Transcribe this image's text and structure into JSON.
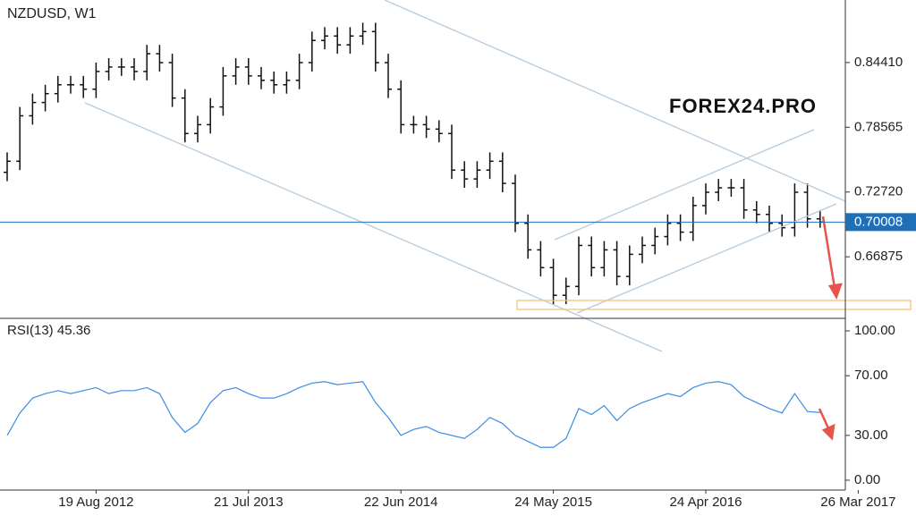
{
  "chart_data": [
    {
      "type": "ohlc",
      "title": "NZDUSD, W1",
      "watermark": "FOREX24.PRO",
      "ylim": [
        0.614,
        0.9005
      ],
      "yticks": [
        {
          "value": 0.8441,
          "label": "0.84410"
        },
        0.78565,
        {
          "value": 0.7272,
          "label": "0.72720"
        },
        0.66875
      ],
      "current_price": 0.70008,
      "current_color": "#1f6fb8",
      "color": "#111111",
      "series": [
        {
          "name": "NZDUSD",
          "open": [
            0.745,
            0.755,
            0.796,
            0.808,
            0.816,
            0.824,
            0.824,
            0.82,
            0.836,
            0.84,
            0.84,
            0.836,
            0.852,
            0.844,
            0.812,
            0.78,
            0.788,
            0.804,
            0.832,
            0.84,
            0.832,
            0.828,
            0.824,
            0.828,
            0.844,
            0.864,
            0.868,
            0.86,
            0.868,
            0.872,
            0.844,
            0.82,
            0.788,
            0.788,
            0.784,
            0.78,
            0.747,
            0.739,
            0.747,
            0.755,
            0.735,
            0.699,
            0.675,
            0.659,
            0.634,
            0.642,
            0.679,
            0.659,
            0.675,
            0.651,
            0.671,
            0.679,
            0.687,
            0.699,
            0.691,
            0.715,
            0.727,
            0.731,
            0.731,
            0.711,
            0.707,
            0.699,
            0.695,
            0.727,
            0.703,
            null,
            null,
            null
          ],
          "high": [
            0.763,
            0.804,
            0.816,
            0.824,
            0.832,
            0.832,
            0.832,
            0.844,
            0.848,
            0.848,
            0.848,
            0.86,
            0.86,
            0.852,
            0.82,
            0.796,
            0.812,
            0.84,
            0.848,
            0.848,
            0.84,
            0.836,
            0.836,
            0.852,
            0.872,
            0.876,
            0.876,
            0.876,
            0.88,
            0.88,
            0.852,
            0.828,
            0.796,
            0.796,
            0.792,
            0.788,
            0.755,
            0.755,
            0.763,
            0.763,
            0.743,
            0.707,
            0.683,
            0.667,
            0.65,
            0.687,
            0.687,
            0.683,
            0.683,
            0.679,
            0.687,
            0.695,
            0.707,
            0.707,
            0.723,
            0.735,
            0.739,
            0.739,
            0.739,
            0.719,
            0.715,
            0.707,
            0.735,
            0.735,
            0.711,
            null,
            null,
            null
          ],
          "low": [
            0.737,
            0.747,
            0.788,
            0.8,
            0.808,
            0.816,
            0.812,
            0.812,
            0.828,
            0.832,
            0.828,
            0.828,
            0.836,
            0.804,
            0.772,
            0.772,
            0.78,
            0.796,
            0.824,
            0.824,
            0.82,
            0.816,
            0.816,
            0.82,
            0.836,
            0.856,
            0.852,
            0.852,
            0.86,
            0.836,
            0.812,
            0.78,
            0.78,
            0.776,
            0.772,
            0.739,
            0.731,
            0.731,
            0.739,
            0.727,
            0.691,
            0.667,
            0.651,
            0.626,
            0.626,
            0.634,
            0.651,
            0.651,
            0.643,
            0.643,
            0.663,
            0.671,
            0.679,
            0.683,
            0.683,
            0.707,
            0.719,
            0.723,
            0.703,
            0.699,
            0.691,
            0.687,
            0.687,
            0.695,
            0.695,
            null,
            null,
            null
          ],
          "close": [
            0.755,
            0.796,
            0.808,
            0.816,
            0.824,
            0.824,
            0.82,
            0.836,
            0.84,
            0.84,
            0.836,
            0.852,
            0.844,
            0.812,
            0.78,
            0.788,
            0.804,
            0.832,
            0.84,
            0.832,
            0.828,
            0.824,
            0.828,
            0.844,
            0.864,
            0.868,
            0.86,
            0.868,
            0.872,
            0.844,
            0.82,
            0.788,
            0.788,
            0.784,
            0.78,
            0.747,
            0.739,
            0.747,
            0.755,
            0.735,
            0.699,
            0.675,
            0.659,
            0.634,
            0.642,
            0.679,
            0.659,
            0.675,
            0.651,
            0.671,
            0.679,
            0.687,
            0.699,
            0.691,
            0.715,
            0.727,
            0.731,
            0.731,
            0.711,
            0.707,
            0.699,
            0.695,
            0.727,
            0.703,
            0.70008,
            null,
            null,
            null
          ]
        }
      ]
    },
    {
      "type": "line",
      "indicator": "RSI(13)",
      "categories": [
        null,
        null,
        null,
        null,
        null,
        null,
        null,
        "19 Aug 2012",
        null,
        null,
        null,
        null,
        null,
        null,
        null,
        null,
        null,
        null,
        null,
        "21 Jul 2013",
        null,
        null,
        null,
        null,
        null,
        null,
        null,
        null,
        null,
        null,
        null,
        "22 Jun 2014",
        null,
        null,
        null,
        null,
        null,
        null,
        null,
        null,
        null,
        null,
        null,
        "24 May 2015",
        null,
        null,
        null,
        null,
        null,
        null,
        null,
        null,
        null,
        null,
        null,
        "24 Apr 2016",
        null,
        null,
        null,
        null,
        null,
        null,
        null,
        null,
        null,
        null,
        null,
        "26 Mar 2017"
      ],
      "ylim": [
        -6.6,
        107.8
      ],
      "yticks": [
        {
          "value": 100,
          "label": "100.00"
        },
        {
          "value": 70,
          "label": "70.00"
        },
        {
          "value": 30,
          "label": "30.00"
        },
        {
          "value": 0,
          "label": "0.00"
        }
      ],
      "series": [
        {
          "name": "RSI",
          "color": "#3a8ee6",
          "values": [
            30,
            45,
            55,
            58,
            60,
            58,
            60,
            62,
            58,
            60,
            60,
            62,
            58,
            42,
            32,
            38,
            52,
            60,
            62,
            58,
            55,
            55,
            58,
            62,
            65,
            66,
            64,
            65,
            66,
            52,
            42,
            30,
            34,
            36,
            32,
            30,
            28,
            34,
            42,
            38,
            30,
            26,
            22,
            22,
            28,
            48,
            44,
            50,
            40,
            48,
            52,
            55,
            58,
            56,
            62,
            65,
            66,
            64,
            56,
            52,
            48,
            45,
            58,
            46,
            45.36,
            null,
            null,
            null
          ]
        }
      ]
    }
  ]
}
